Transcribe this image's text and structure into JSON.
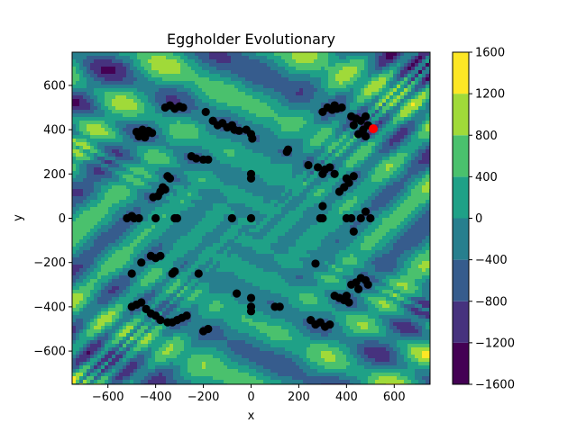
{
  "chart_data": {
    "type": "scatter",
    "title": "Eggholder Evolutionary",
    "xlabel": "x",
    "ylabel": "y",
    "xlim": [
      -750,
      750
    ],
    "ylim": [
      -750,
      750
    ],
    "xticks": [
      -600,
      -400,
      -200,
      0,
      200,
      400,
      600
    ],
    "yticks": [
      -600,
      -400,
      -200,
      0,
      200,
      400,
      600
    ],
    "xtick_labels": [
      "−600",
      "−400",
      "−200",
      "0",
      "200",
      "400",
      "600"
    ],
    "ytick_labels": [
      "−600",
      "−400",
      "−200",
      "0",
      "200",
      "400",
      "600"
    ],
    "colorbar": {
      "levels": [
        -1600,
        -1200,
        -800,
        -400,
        0,
        400,
        800,
        1200,
        1600
      ],
      "tick_labels": [
        "−1600",
        "−1200",
        "−800",
        "−400",
        "0",
        "400",
        "800",
        "1200",
        "1600"
      ],
      "colors": [
        "#440154",
        "#46327e",
        "#365c8d",
        "#277f8e",
        "#1fa187",
        "#4ac16d",
        "#a0da39",
        "#fde725"
      ]
    },
    "background": "filled contour of the Eggholder function",
    "grid": false,
    "series": [
      {
        "marker_color": "#000000",
        "points": [
          [
            -480,
            390
          ],
          [
            -470,
            370
          ],
          [
            -455,
            400
          ],
          [
            -440,
            380
          ],
          [
            -430,
            395
          ],
          [
            -445,
            365
          ],
          [
            -415,
            385
          ],
          [
            -360,
            500
          ],
          [
            -340,
            510
          ],
          [
            -320,
            495
          ],
          [
            -300,
            505
          ],
          [
            -285,
            500
          ],
          [
            -190,
            480
          ],
          [
            -160,
            440
          ],
          [
            -140,
            420
          ],
          [
            -120,
            430
          ],
          [
            -100,
            410
          ],
          [
            -80,
            420
          ],
          [
            -70,
            400
          ],
          [
            -50,
            395
          ],
          [
            -20,
            400
          ],
          [
            0,
            380
          ],
          [
            5,
            360
          ],
          [
            -250,
            280
          ],
          [
            -230,
            270
          ],
          [
            -200,
            265
          ],
          [
            -180,
            265
          ],
          [
            155,
            310
          ],
          [
            150,
            300
          ],
          [
            240,
            240
          ],
          [
            280,
            230
          ],
          [
            310,
            220
          ],
          [
            330,
            230
          ],
          [
            350,
            200
          ],
          [
            300,
            200
          ],
          [
            300,
            480
          ],
          [
            320,
            500
          ],
          [
            340,
            490
          ],
          [
            360,
            495
          ],
          [
            380,
            500
          ],
          [
            350,
            510
          ],
          [
            420,
            460
          ],
          [
            440,
            450
          ],
          [
            460,
            440
          ],
          [
            480,
            460
          ],
          [
            490,
            420
          ],
          [
            470,
            400
          ],
          [
            430,
            420
          ],
          [
            450,
            380
          ],
          [
            480,
            370
          ],
          [
            370,
            120
          ],
          [
            390,
            140
          ],
          [
            410,
            160
          ],
          [
            430,
            190
          ],
          [
            400,
            180
          ],
          [
            -350,
            190
          ],
          [
            -340,
            180
          ],
          [
            -370,
            140
          ],
          [
            -380,
            120
          ],
          [
            -360,
            130
          ],
          [
            -390,
            100
          ],
          [
            -410,
            95
          ],
          [
            0,
            200
          ],
          [
            0,
            180
          ],
          [
            -520,
            0
          ],
          [
            -500,
            10
          ],
          [
            -490,
            0
          ],
          [
            -470,
            0
          ],
          [
            -400,
            0
          ],
          [
            -320,
            0
          ],
          [
            -310,
            0
          ],
          [
            -80,
            0
          ],
          [
            0,
            0
          ],
          [
            300,
            55
          ],
          [
            290,
            0
          ],
          [
            300,
            0
          ],
          [
            400,
            0
          ],
          [
            420,
            0
          ],
          [
            460,
            0
          ],
          [
            500,
            0
          ],
          [
            480,
            30
          ],
          [
            430,
            -60
          ],
          [
            -420,
            -170
          ],
          [
            -400,
            -180
          ],
          [
            -380,
            -170
          ],
          [
            -460,
            -200
          ],
          [
            -500,
            -250
          ],
          [
            -330,
            -250
          ],
          [
            -320,
            -240
          ],
          [
            -220,
            -250
          ],
          [
            -500,
            -400
          ],
          [
            -480,
            -390
          ],
          [
            -460,
            -380
          ],
          [
            -440,
            -410
          ],
          [
            -420,
            -430
          ],
          [
            -400,
            -440
          ],
          [
            -380,
            -460
          ],
          [
            -350,
            -470
          ],
          [
            -330,
            -470
          ],
          [
            -310,
            -460
          ],
          [
            -290,
            -450
          ],
          [
            -270,
            -440
          ],
          [
            -200,
            -510
          ],
          [
            -180,
            -500
          ],
          [
            -60,
            -340
          ],
          [
            0,
            -360
          ],
          [
            0,
            -400
          ],
          [
            0,
            -420
          ],
          [
            100,
            -400
          ],
          [
            120,
            -400
          ],
          [
            270,
            -205
          ],
          [
            250,
            -460
          ],
          [
            270,
            -480
          ],
          [
            290,
            -470
          ],
          [
            310,
            -490
          ],
          [
            330,
            -480
          ],
          [
            350,
            -350
          ],
          [
            370,
            -360
          ],
          [
            390,
            -370
          ],
          [
            410,
            -380
          ],
          [
            400,
            -350
          ],
          [
            420,
            -300
          ],
          [
            440,
            -290
          ],
          [
            460,
            -270
          ],
          [
            480,
            -280
          ],
          [
            490,
            -300
          ],
          [
            450,
            -320
          ]
        ]
      },
      {
        "marker_color": "#ff0000",
        "points": [
          [
            512,
            404
          ]
        ]
      }
    ]
  }
}
